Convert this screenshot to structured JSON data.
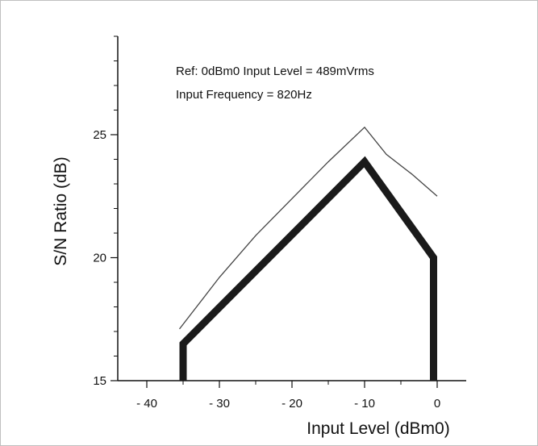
{
  "chart_data": {
    "type": "line",
    "title": "",
    "xlabel": "Input Level (dBm0)",
    "ylabel": "S/N Ratio (dB)",
    "xlim": [
      -44,
      4
    ],
    "ylim": [
      15,
      29
    ],
    "xticks": [
      -40,
      -30,
      -20,
      -10,
      0
    ],
    "xtick_labels": [
      "- 40",
      "- 30",
      "- 20",
      "- 10",
      "0"
    ],
    "yticks": [
      15,
      20,
      25
    ],
    "ytick_labels": [
      "15",
      "20",
      "25"
    ],
    "grid": false,
    "annotations": [
      "Ref: 0dBm0 Input Level = 489mVrms",
      "Input Frequency = 820Hz"
    ],
    "series": [
      {
        "role": "typical",
        "color": "#444444",
        "points": [
          [
            -35.5,
            17.1
          ],
          [
            -30,
            19.2
          ],
          [
            -25,
            20.9
          ],
          [
            -20,
            22.4
          ],
          [
            -15,
            23.9
          ],
          [
            -10,
            25.3
          ],
          [
            -7,
            24.2
          ],
          [
            -3.5,
            23.4
          ],
          [
            0,
            22.5
          ]
        ]
      },
      {
        "role": "minimum",
        "color": "#1a1a1a",
        "points": [
          [
            -35,
            15
          ],
          [
            -35,
            16.5
          ],
          [
            -10,
            23.9
          ],
          [
            -0.5,
            20.0
          ],
          [
            -0.5,
            15
          ]
        ]
      }
    ]
  }
}
